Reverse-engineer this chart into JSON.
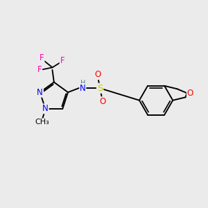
{
  "background_color": "#ebebeb",
  "figsize": [
    3.0,
    3.0
  ],
  "dpi": 100,
  "bond_color": "#000000",
  "bond_width": 1.4,
  "atom_colors": {
    "N": "#0000ff",
    "O": "#ff0000",
    "S": "#cccc00",
    "F": "#ff00aa",
    "H": "#4a8a8a",
    "C": "#000000"
  },
  "font_size": 8.5
}
